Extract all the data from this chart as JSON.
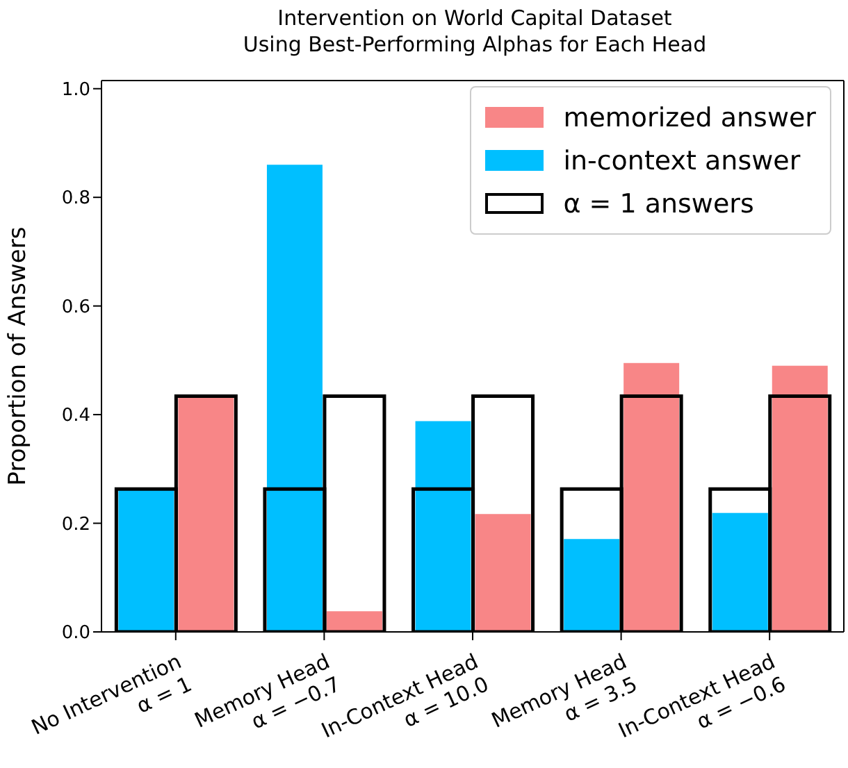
{
  "chart_data": {
    "type": "bar",
    "title": "Intervention on World Capital Dataset\nUsing Best-Performing Alphas for Each Head",
    "ylabel": "Proportion of Answers",
    "categories": [
      "No Intervention\nα = 1",
      "Memory Head\nα = −0.7",
      "In-Context Head\nα = 10.0",
      "Memory Head\nα = 3.5",
      "In-Context Head\nα = −0.6"
    ],
    "series": [
      {
        "name": "memorized answer",
        "color": "#f88687",
        "values": [
          0.434,
          0.038,
          0.217,
          0.495,
          0.49
        ]
      },
      {
        "name": "in-context answer",
        "color": "#00bfff",
        "values": [
          0.263,
          0.86,
          0.388,
          0.171,
          0.219
        ]
      },
      {
        "name": "α = 1 answers",
        "color": "#000000",
        "values": [
          0.434,
          0.434,
          0.434,
          0.434,
          0.434
        ]
      },
      {
        "color": "#000000",
        "values": [
          0.263,
          0.263,
          0.263,
          0.263,
          0.263
        ]
      }
    ],
    "ylim": [
      0,
      1.015
    ],
    "yticks": [
      {
        "value": 0,
        "label": "0.0"
      },
      {
        "value": 0.2,
        "label": "0.2"
      },
      {
        "value": 0.4,
        "label": "0.4"
      },
      {
        "value": 0.6,
        "label": "0.6"
      },
      {
        "value": 0.8,
        "label": "0.8"
      },
      {
        "value": 1,
        "label": "1.0"
      }
    ],
    "legend": "top right"
  }
}
